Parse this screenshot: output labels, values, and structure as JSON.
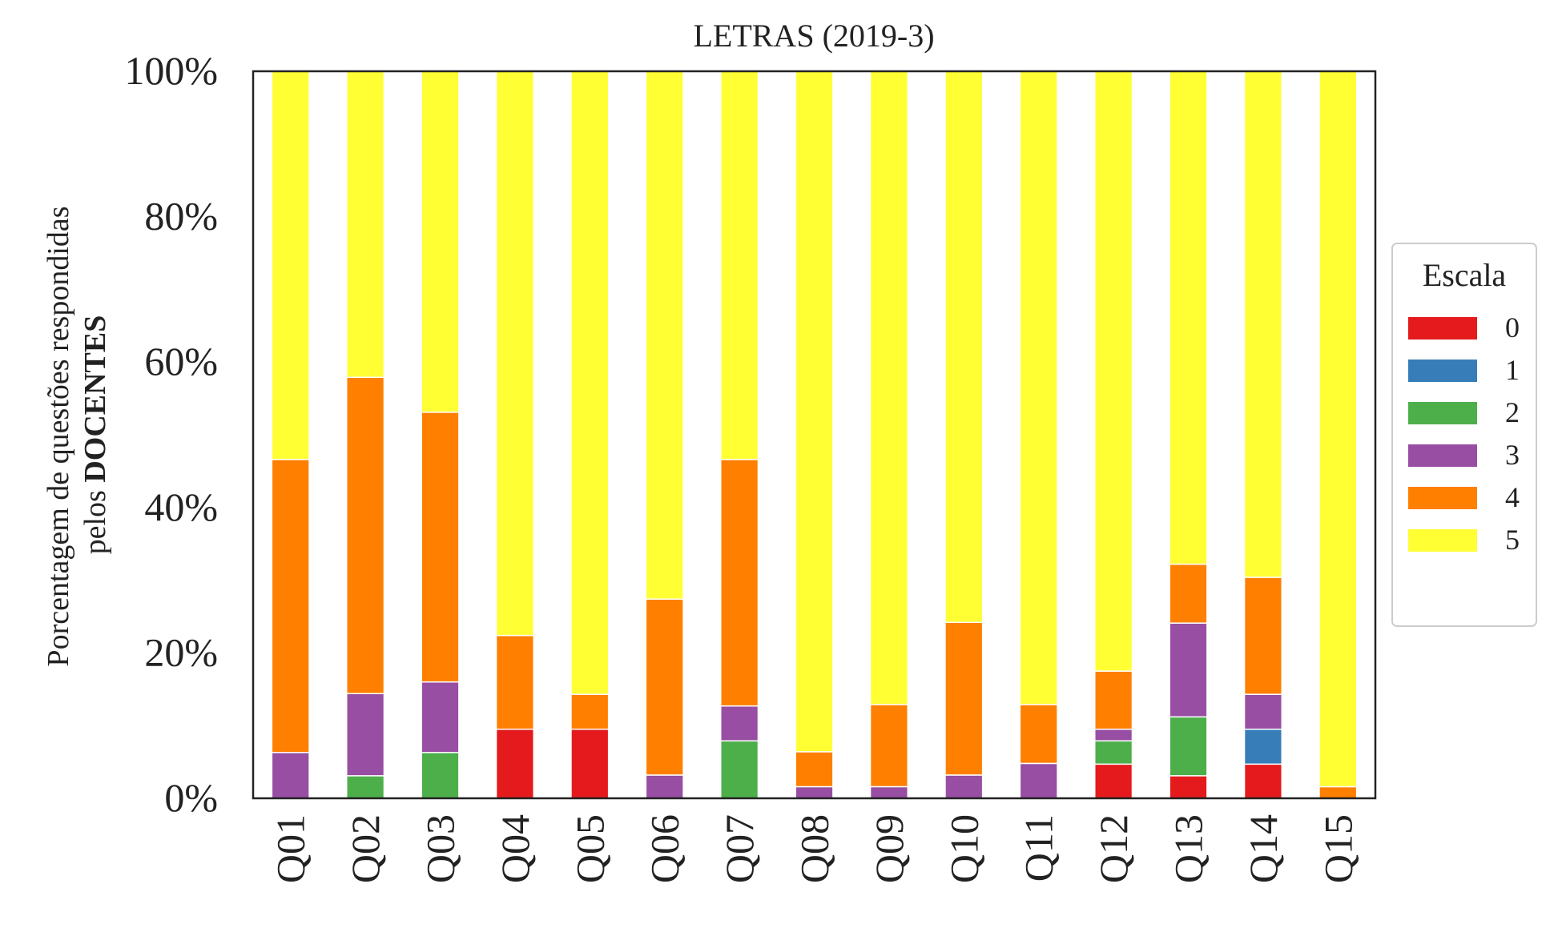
{
  "chart_data": {
    "type": "bar",
    "stacked": true,
    "title": "LETRAS (2019-3)",
    "xlabel": "",
    "ylabel_line1": "Porcentagem de questões respondidas",
    "ylabel_line2_prefix": "pelos ",
    "ylabel_line2_bold": "DOCENTES",
    "ylim": [
      0,
      100
    ],
    "yticks": [
      "0%",
      "20%",
      "40%",
      "60%",
      "80%",
      "100%"
    ],
    "categories": [
      "Q01",
      "Q02",
      "Q03",
      "Q04",
      "Q05",
      "Q06",
      "Q07",
      "Q08",
      "Q09",
      "Q10",
      "Q11",
      "Q12",
      "Q13",
      "Q14",
      "Q15"
    ],
    "legend_title": "Escala",
    "legend_placement": "center-right",
    "grid": false,
    "series": [
      {
        "name": "0",
        "color": "#e41a1c",
        "values": [
          0,
          0,
          0,
          9.5,
          9.5,
          0,
          0,
          0,
          0,
          0,
          0,
          4.7,
          3.1,
          4.7,
          0
        ]
      },
      {
        "name": "1",
        "color": "#377eb8",
        "values": [
          0,
          0,
          0,
          0,
          0,
          0,
          0,
          0,
          0,
          0,
          0,
          0,
          0,
          4.8,
          0
        ]
      },
      {
        "name": "2",
        "color": "#4daf4a",
        "values": [
          0,
          3.1,
          6.3,
          0,
          0,
          0,
          7.9,
          0,
          0,
          0,
          0,
          3.2,
          8.1,
          0,
          0
        ]
      },
      {
        "name": "3",
        "color": "#984ea3",
        "values": [
          6.3,
          11.3,
          9.7,
          0,
          0,
          3.2,
          4.8,
          1.6,
          1.6,
          3.2,
          4.8,
          1.6,
          12.9,
          4.8,
          0
        ]
      },
      {
        "name": "4",
        "color": "#ff7f00",
        "values": [
          40.3,
          43.5,
          37.1,
          12.9,
          4.8,
          24.2,
          33.9,
          4.8,
          11.3,
          21.0,
          8.1,
          8.0,
          8.1,
          16.1,
          1.6
        ]
      },
      {
        "name": "5",
        "color": "#ffff33",
        "values": [
          53.4,
          42.1,
          46.9,
          77.6,
          85.7,
          72.6,
          53.4,
          93.6,
          87.1,
          75.8,
          87.1,
          82.5,
          67.8,
          69.6,
          98.4
        ]
      }
    ]
  }
}
